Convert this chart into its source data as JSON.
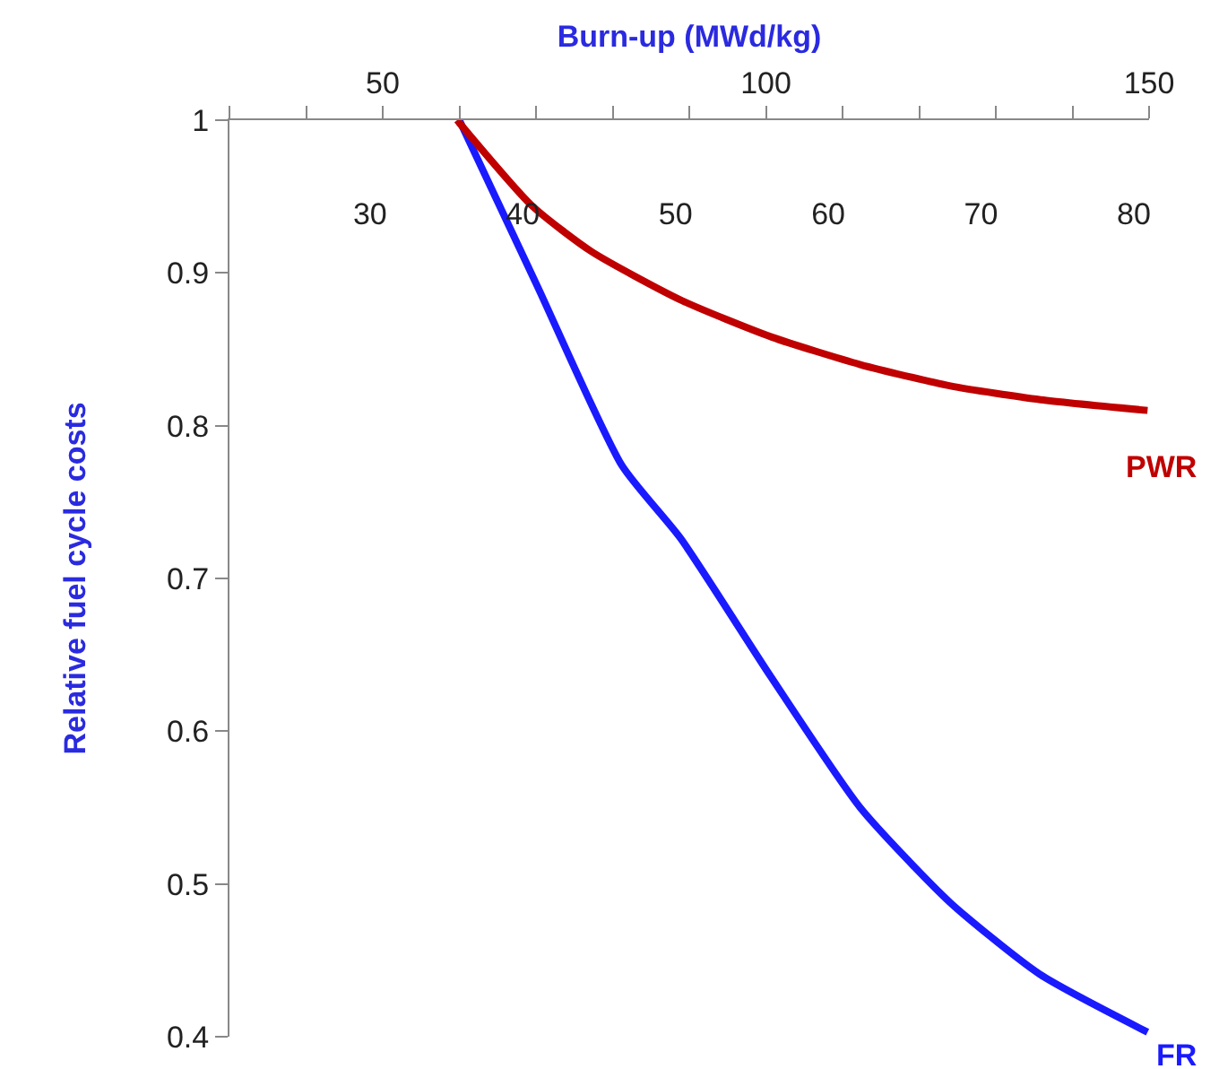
{
  "chart_data": {
    "type": "line",
    "xlabel": "Burn-up (MWd/kg)",
    "ylabel": "Relative fuel cycle costs",
    "xlim": [
      30,
      150
    ],
    "xticks": [
      {
        "value": 30,
        "label": null
      },
      {
        "value": 40,
        "label": null
      },
      50,
      {
        "value": 60,
        "label": null
      },
      {
        "value": 70,
        "label": null
      },
      {
        "value": 80,
        "label": null
      },
      {
        "value": 90,
        "label": null
      },
      100,
      {
        "value": 110,
        "label": null
      },
      {
        "value": 120,
        "label": null
      },
      {
        "value": 130,
        "label": null
      },
      {
        "value": 140,
        "label": null
      },
      150
    ],
    "x2lim": [
      20.8,
      81
    ],
    "x2ticks": [
      30,
      40,
      50,
      60,
      70,
      80
    ],
    "ylim": [
      0.4,
      1
    ],
    "yticks": [
      0.4,
      0.5,
      0.6,
      0.7,
      0.8,
      0.9,
      1
    ],
    "grid": false,
    "legend": false,
    "marker": "none",
    "line_style": "solid",
    "series": [
      {
        "name": "PWR",
        "color": "#c00000",
        "axis": "x2",
        "x": [
          35.7,
          40.6,
          44.5,
          50.4,
          56.3,
          62.1,
          68.0,
          73.9,
          80.9
        ],
        "values": [
          1.0,
          0.944,
          0.914,
          0.882,
          0.858,
          0.84,
          0.826,
          0.817,
          0.81
        ]
      },
      {
        "name": "FR",
        "color": "#1a1aff",
        "x": [
          60,
          70.2,
          81.2,
          88.9,
          100.6,
          112.3,
          124.0,
          135.7,
          149.8
        ],
        "values": [
          1.0,
          0.891,
          0.774,
          0.726,
          0.636,
          0.55,
          0.488,
          0.441,
          0.403
        ]
      }
    ]
  }
}
